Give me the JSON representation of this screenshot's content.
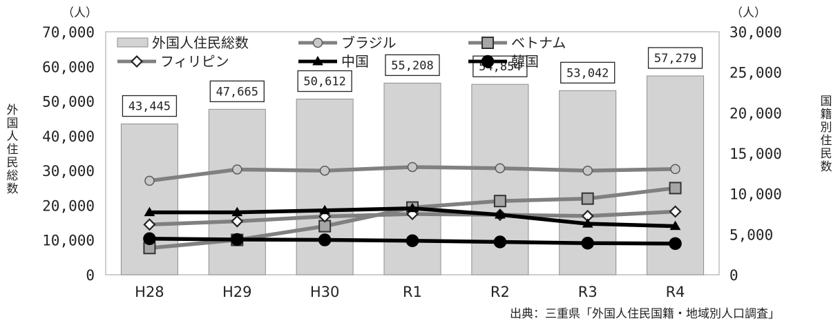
{
  "chart_data": {
    "type": "bar",
    "categories": [
      "H28",
      "H29",
      "H30",
      "R1",
      "R2",
      "R3",
      "R4"
    ],
    "bar_series": {
      "name": "外国人住民総数",
      "values": [
        43445,
        47665,
        50612,
        55208,
        54854,
        53042,
        57279
      ],
      "labels": [
        "43,445",
        "47,665",
        "50,612",
        "55,208",
        "54,854",
        "53,042",
        "57,279"
      ],
      "color": "#d3d3d3"
    },
    "line_series": [
      {
        "name": "ブラジル",
        "marker": "circle",
        "color": "#808080",
        "values": [
          11600,
          13000,
          12850,
          13300,
          13150,
          12850,
          13050
        ]
      },
      {
        "name": "ベトナム",
        "marker": "square",
        "color": "#808080",
        "values": [
          3300,
          4300,
          6000,
          8300,
          9100,
          9400,
          10700
        ]
      },
      {
        "name": "フィリピン",
        "marker": "diamond",
        "color": "#808080",
        "values": [
          6200,
          6600,
          7200,
          7500,
          7400,
          7250,
          7800
        ]
      },
      {
        "name": "中国",
        "marker": "triangle",
        "color": "#000000",
        "values": [
          7700,
          7700,
          7950,
          8200,
          7400,
          6300,
          6000
        ]
      },
      {
        "name": "韓国",
        "marker": "circle",
        "color": "#000000",
        "values": [
          4450,
          4350,
          4300,
          4200,
          4050,
          3900,
          3850
        ]
      }
    ],
    "left_axis": {
      "label": "外国人住民総数",
      "unit": "（人）",
      "ylim": [
        0,
        70000
      ],
      "ticks": [
        "0",
        "10,000",
        "20,000",
        "30,000",
        "40,000",
        "50,000",
        "60,000",
        "70,000"
      ]
    },
    "right_axis": {
      "label": "国籍別住民数",
      "unit": "（人）",
      "ylim": [
        0,
        30000
      ],
      "ticks": [
        "0",
        "5,000",
        "10,000",
        "15,000",
        "20,000",
        "25,000",
        "30,000"
      ]
    },
    "legend_position": "top-left",
    "grid": false,
    "source": "出典：三重県「外国人住民国籍・地域別人口調査」"
  }
}
